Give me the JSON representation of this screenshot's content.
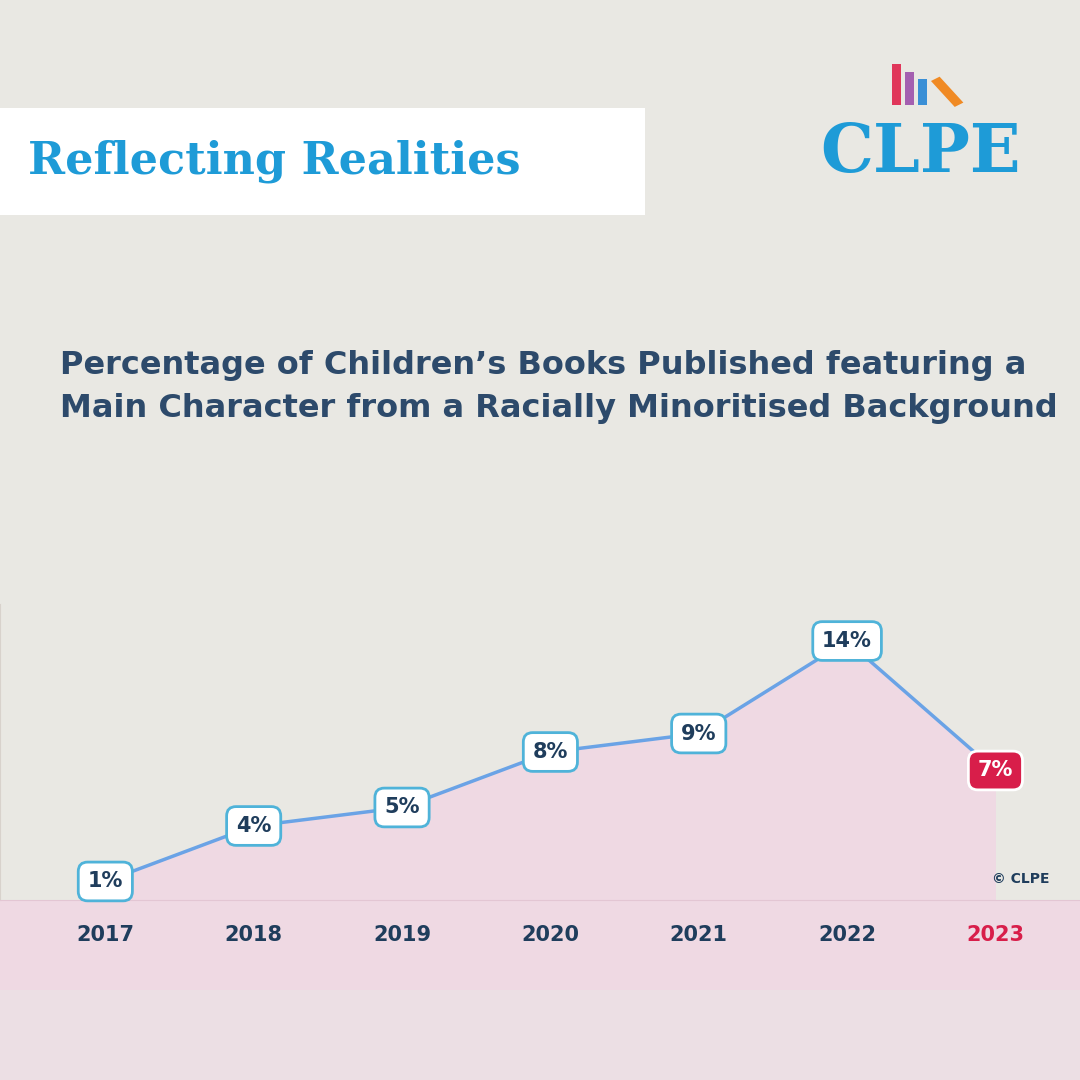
{
  "chart_data": {
    "type": "line",
    "title": "Reflecting Realities",
    "subtitle": "Percentage of Children’s Books Published featuring a Main Character from a Racially Minoritised Background",
    "categories": [
      "2017",
      "2018",
      "2019",
      "2020",
      "2021",
      "2022",
      "2023"
    ],
    "values": [
      1,
      4,
      5,
      8,
      9,
      14,
      7
    ],
    "value_labels": [
      "1%",
      "4%",
      "5%",
      "8%",
      "9%",
      "14%",
      "7%"
    ],
    "data_labels": true,
    "color": "#6aa3e6",
    "ylim": [
      0,
      16
    ],
    "yticks": [],
    "tick_labels": "x",
    "annotations": [
      "CLPE",
      "© CLPE"
    ]
  }
}
